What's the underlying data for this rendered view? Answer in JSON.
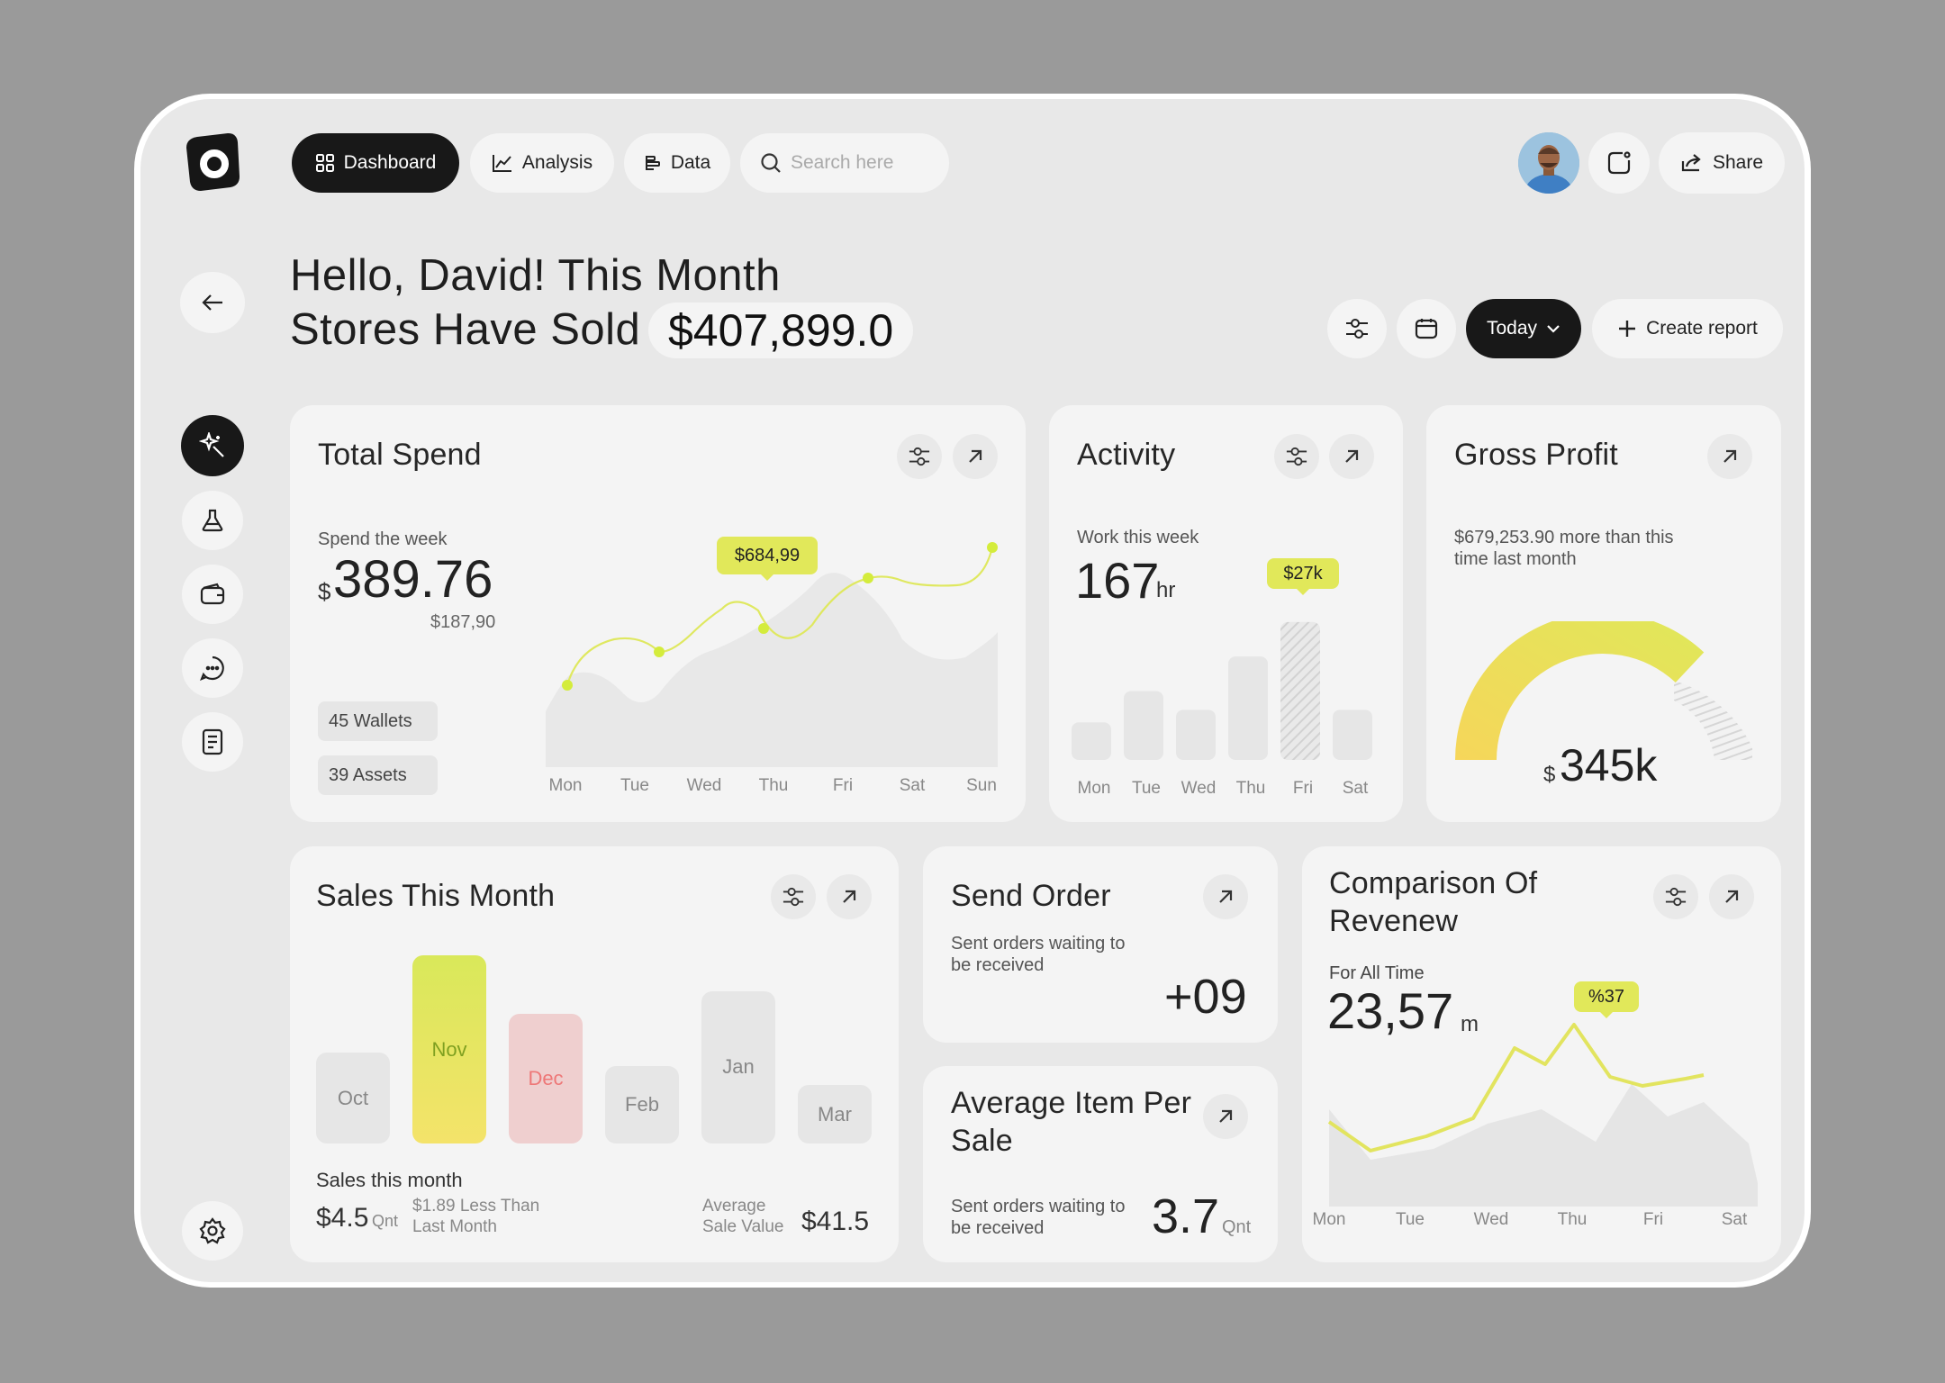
{
  "nav": {
    "dashboard": "Dashboard",
    "analysis": "Analysis",
    "data": "Data",
    "search_placeholder": "Search here",
    "share": "Share"
  },
  "header": {
    "greeting_line1": "Hello, David! This Month",
    "greeting_line2": "Stores Have Sold",
    "total": "$407,899.0"
  },
  "toolbar": {
    "today": "Today",
    "create_report": "Create report"
  },
  "icons": {
    "logo": "logo-icon",
    "back": "arrow-left-icon",
    "sidebar": [
      "magic-wand-icon",
      "flask-icon",
      "wallet-icon",
      "chat-icon",
      "document-icon"
    ],
    "settings": "gear-icon",
    "filter": "sliders-icon",
    "calendar": "calendar-icon",
    "expand": "arrow-up-right-icon"
  },
  "total_spend": {
    "title": "Total Spend",
    "subtitle": "Spend the week",
    "currency": "$",
    "amount": "389.76",
    "sub_amount": "$187,90",
    "wallets": "45 Wallets",
    "assets": "39 Assets",
    "tooltip": "$684,99",
    "chart_data": {
      "type": "line",
      "categories": [
        "Mon",
        "Tue",
        "Wed",
        "Thu",
        "Fri",
        "Sat",
        "Sun"
      ]
    }
  },
  "activity": {
    "title": "Activity",
    "subtitle": "Work this week",
    "value": "167",
    "unit": "hr",
    "tooltip": "$27k",
    "chart_data": {
      "type": "bar",
      "categories": [
        "Mon",
        "Tue",
        "Wed",
        "Thu",
        "Fri",
        "Sat"
      ],
      "values": [
        24,
        44,
        32,
        66,
        88,
        32
      ],
      "highlight": "Fri"
    }
  },
  "gross_profit": {
    "title": "Gross Profit",
    "description": "$679,253.90 more than this time last month",
    "currency": "$",
    "value": "345k",
    "chart_data": {
      "type": "gauge",
      "fraction": 0.74
    }
  },
  "sales_month": {
    "title": "Sales This Month",
    "subtitle": "Sales this month",
    "amount": "$4.5",
    "amount_unit": "Qnt",
    "less_than": "$1.89 Less Than Last Month",
    "avg_label": "Average Sale Value",
    "avg_value": "$41.5",
    "chart_data": {
      "type": "bar",
      "categories": [
        "Oct",
        "Nov",
        "Dec",
        "Feb",
        "Jan",
        "Mar"
      ],
      "values": [
        28,
        58,
        40,
        24,
        47,
        18
      ],
      "colors": [
        "#e6e6e6",
        "#e4e85a",
        "#efcfcf",
        "#e6e6e6",
        "#e6e6e6",
        "#e6e6e6"
      ]
    }
  },
  "send_order": {
    "title": "Send Order",
    "description": "Sent orders waiting to be received",
    "value": "+09"
  },
  "avg_item": {
    "title": "Average Item Per Sale",
    "description": "Sent orders waiting to be received",
    "value": "3.7",
    "unit": "Qnt"
  },
  "comparison": {
    "title": "Comparison Of Revenew",
    "subtitle": "For All Time",
    "value": "23,57",
    "unit": "m",
    "tooltip": "%37",
    "chart_data": {
      "type": "line",
      "categories": [
        "Mon",
        "Tue",
        "Wed",
        "Thu",
        "Fri",
        "Sat"
      ]
    }
  }
}
